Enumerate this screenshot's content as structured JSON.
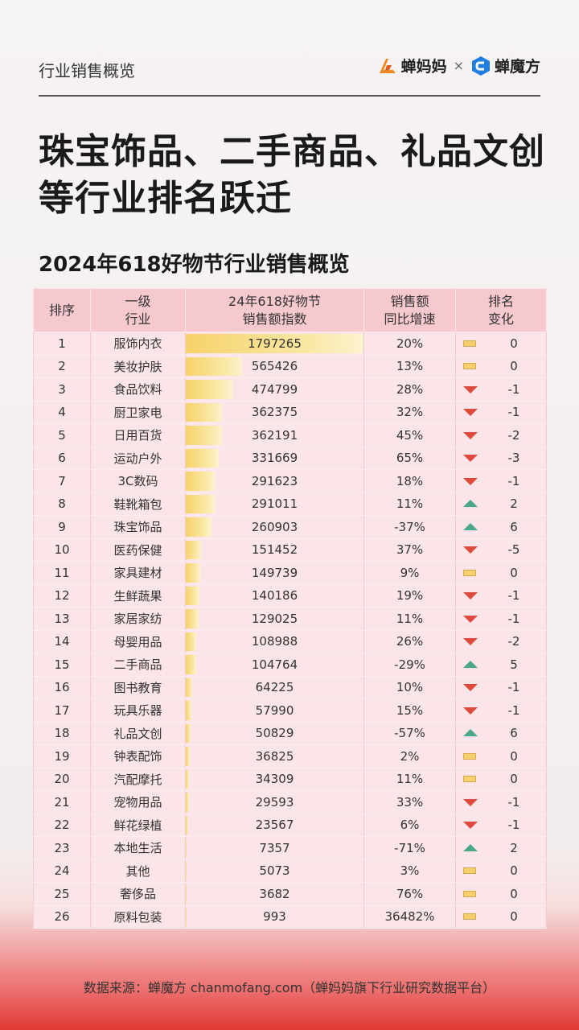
{
  "header": {
    "section_label": "行业销售概览",
    "brand_left": "蝉妈妈",
    "separator": "×",
    "brand_right": "蝉魔方"
  },
  "headline": "珠宝饰品、二手商品、礼品文创等行业排名跃迁",
  "colors": {
    "bar": "#f6d26a",
    "header_bg": "#f6c9cf",
    "row_bg": "#fbe5e8",
    "down": "#e04a3c",
    "up": "#4aa88a",
    "flat": "#f4cf6e"
  },
  "chart_data": {
    "type": "table",
    "title": "2024年618好物节行业销售概览",
    "columns": [
      "排序",
      "一级\n行业",
      "24年618好物节\n销售额指数",
      "销售额\n同比增速",
      "排名\n变化"
    ],
    "rows": [
      {
        "rank": "1",
        "industry": "服饰内衣",
        "index": 1797265,
        "growth": "20%",
        "trend": "flat",
        "change": "0"
      },
      {
        "rank": "2",
        "industry": "美妆护肤",
        "index": 565426,
        "growth": "13%",
        "trend": "flat",
        "change": "0"
      },
      {
        "rank": "3",
        "industry": "食品饮料",
        "index": 474799,
        "growth": "28%",
        "trend": "down",
        "change": "-1"
      },
      {
        "rank": "4",
        "industry": "厨卫家电",
        "index": 362375,
        "growth": "32%",
        "trend": "down",
        "change": "-1"
      },
      {
        "rank": "5",
        "industry": "日用百货",
        "index": 362191,
        "growth": "45%",
        "trend": "down",
        "change": "-2"
      },
      {
        "rank": "6",
        "industry": "运动户外",
        "index": 331669,
        "growth": "65%",
        "trend": "down",
        "change": "-3"
      },
      {
        "rank": "7",
        "industry": "3C数码",
        "index": 291623,
        "growth": "18%",
        "trend": "down",
        "change": "-1"
      },
      {
        "rank": "8",
        "industry": "鞋靴箱包",
        "index": 291011,
        "growth": "11%",
        "trend": "up",
        "change": "2"
      },
      {
        "rank": "9",
        "industry": "珠宝饰品",
        "index": 260903,
        "growth": "-37%",
        "trend": "up",
        "change": "6"
      },
      {
        "rank": "10",
        "industry": "医药保健",
        "index": 151452,
        "growth": "37%",
        "trend": "down",
        "change": "-5"
      },
      {
        "rank": "11",
        "industry": "家具建材",
        "index": 149739,
        "growth": "9%",
        "trend": "flat",
        "change": "0"
      },
      {
        "rank": "12",
        "industry": "生鲜蔬果",
        "index": 140186,
        "growth": "19%",
        "trend": "down",
        "change": "-1"
      },
      {
        "rank": "13",
        "industry": "家居家纺",
        "index": 129025,
        "growth": "11%",
        "trend": "down",
        "change": "-1"
      },
      {
        "rank": "14",
        "industry": "母婴用品",
        "index": 108988,
        "growth": "26%",
        "trend": "down",
        "change": "-2"
      },
      {
        "rank": "15",
        "industry": "二手商品",
        "index": 104764,
        "growth": "-29%",
        "trend": "up",
        "change": "5"
      },
      {
        "rank": "16",
        "industry": "图书教育",
        "index": 64225,
        "growth": "10%",
        "trend": "down",
        "change": "-1"
      },
      {
        "rank": "17",
        "industry": "玩具乐器",
        "index": 57990,
        "growth": "15%",
        "trend": "down",
        "change": "-1"
      },
      {
        "rank": "18",
        "industry": "礼品文创",
        "index": 50829,
        "growth": "-57%",
        "trend": "up",
        "change": "6"
      },
      {
        "rank": "19",
        "industry": "钟表配饰",
        "index": 36825,
        "growth": "2%",
        "trend": "flat",
        "change": "0"
      },
      {
        "rank": "20",
        "industry": "汽配摩托",
        "index": 34309,
        "growth": "11%",
        "trend": "flat",
        "change": "0"
      },
      {
        "rank": "21",
        "industry": "宠物用品",
        "index": 29593,
        "growth": "33%",
        "trend": "down",
        "change": "-1"
      },
      {
        "rank": "22",
        "industry": "鲜花绿植",
        "index": 23567,
        "growth": "6%",
        "trend": "down",
        "change": "-1"
      },
      {
        "rank": "23",
        "industry": "本地生活",
        "index": 7357,
        "growth": "-71%",
        "trend": "up",
        "change": "2"
      },
      {
        "rank": "24",
        "industry": "其他",
        "index": 5073,
        "growth": "3%",
        "trend": "flat",
        "change": "0"
      },
      {
        "rank": "25",
        "industry": "奢侈品",
        "index": 3682,
        "growth": "76%",
        "trend": "flat",
        "change": "0"
      },
      {
        "rank": "26",
        "industry": "原料包装",
        "index": 993,
        "growth": "36482%",
        "trend": "flat",
        "change": "0"
      }
    ]
  },
  "footer": "数据来源：蝉魔方 chanmofang.com（蝉妈妈旗下行业研究数据平台）"
}
